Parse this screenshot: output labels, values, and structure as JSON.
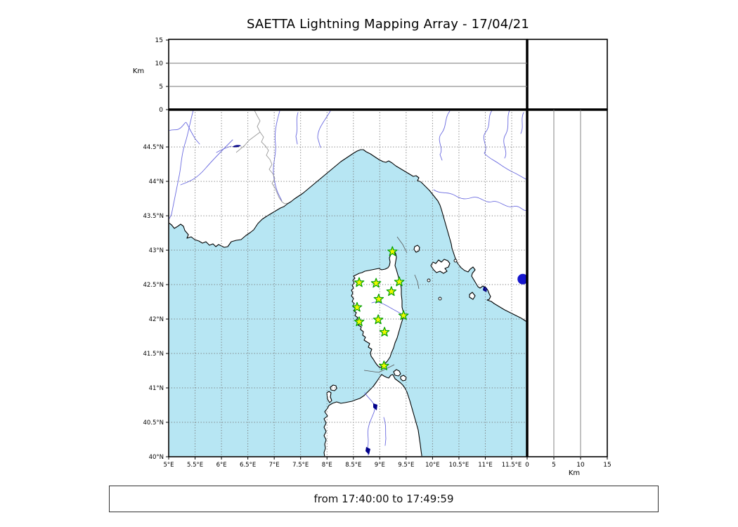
{
  "title": "SAETTA Lightning Mapping Array - 17/04/21",
  "footer": {
    "time_range": "from 17:40:00 to 17:49:59"
  },
  "top_panel": {
    "axis_label": "Km",
    "range": [
      0,
      15
    ],
    "ticks": [
      {
        "v": 0,
        "label": "0"
      },
      {
        "v": 5,
        "label": "5"
      },
      {
        "v": 10,
        "label": "10"
      },
      {
        "v": 15,
        "label": "15"
      }
    ]
  },
  "right_panel": {
    "axis_label": "Km",
    "range": [
      0,
      15
    ],
    "ticks": [
      {
        "v": 0,
        "label": "0"
      },
      {
        "v": 5,
        "label": "5"
      },
      {
        "v": 10,
        "label": "10"
      },
      {
        "v": 15,
        "label": "15"
      }
    ]
  },
  "map": {
    "lon_range": [
      5,
      11.79
    ],
    "lat_range": [
      40,
      45.03
    ],
    "lon_ticks": [
      {
        "v": 5,
        "label": "5°E"
      },
      {
        "v": 5.5,
        "label": "5.5°E"
      },
      {
        "v": 6,
        "label": "6°E"
      },
      {
        "v": 6.5,
        "label": "6.5°E"
      },
      {
        "v": 7,
        "label": "7°E"
      },
      {
        "v": 7.5,
        "label": "7.5°E"
      },
      {
        "v": 8,
        "label": "8°E"
      },
      {
        "v": 8.5,
        "label": "8.5°E"
      },
      {
        "v": 9,
        "label": "9°E"
      },
      {
        "v": 9.5,
        "label": "9.5°E"
      },
      {
        "v": 10,
        "label": "10°E"
      },
      {
        "v": 10.5,
        "label": "10.5°E"
      },
      {
        "v": 11,
        "label": "11°E"
      },
      {
        "v": 11.5,
        "label": "11.5°E"
      }
    ],
    "lat_ticks": [
      {
        "v": 40,
        "label": "40°N"
      },
      {
        "v": 40.5,
        "label": "40.5°N"
      },
      {
        "v": 41,
        "label": "41°N"
      },
      {
        "v": 41.5,
        "label": "41.5°N"
      },
      {
        "v": 42,
        "label": "42°N"
      },
      {
        "v": 42.5,
        "label": "42.5°N"
      },
      {
        "v": 43,
        "label": "43°N"
      },
      {
        "v": 43.5,
        "label": "43.5°N"
      },
      {
        "v": 44,
        "label": "44°N"
      },
      {
        "v": 44.5,
        "label": "44.5°N"
      }
    ]
  },
  "colors": {
    "sea": "#b7e6f3",
    "land": "#ffffff",
    "coast": "#000000",
    "river": "#6a6ae0",
    "grid": "#777777",
    "country_border": "#999999",
    "station_fill": "#f0f800",
    "station_edge": "#00a000",
    "event_dot": "#1515cc",
    "lake": "#00008b"
  },
  "chart_data": {
    "type": "scatter",
    "title": "SAETTA Lightning Mapping Array - 17/04/21",
    "time_window": "from 17:40:00 to 17:49:59",
    "map_panel": {
      "xlim": [
        5,
        11.79
      ],
      "ylim": [
        40,
        45.03
      ],
      "grid": true,
      "xticks": [
        "5°E",
        "5.5°E",
        "6°E",
        "6.5°E",
        "7°E",
        "7.5°E",
        "8°E",
        "8.5°E",
        "9°E",
        "9.5°E",
        "10°E",
        "10.5°E",
        "11°E",
        "11.5°E"
      ],
      "yticks": [
        "40°N",
        "40.5°N",
        "41°N",
        "41.5°N",
        "42°N",
        "42.5°N",
        "43°N",
        "43.5°N",
        "44°N",
        "44.5°N"
      ]
    },
    "altitude_top_panel": {
      "ylabel": "Km",
      "ylim": [
        0,
        15
      ],
      "yticks": [
        0,
        5,
        10,
        15
      ],
      "points": []
    },
    "altitude_right_panel": {
      "xlabel": "Km",
      "xlim": [
        0,
        15
      ],
      "xticks": [
        0,
        5,
        10,
        15
      ],
      "points": []
    },
    "series": [
      {
        "name": "LMA stations",
        "marker": "star",
        "points_lon_lat": [
          [
            9.24,
            42.98
          ],
          [
            8.61,
            42.53
          ],
          [
            8.93,
            42.52
          ],
          [
            9.37,
            42.54
          ],
          [
            9.22,
            42.4
          ],
          [
            8.98,
            42.29
          ],
          [
            8.57,
            42.17
          ],
          [
            9.45,
            42.05
          ],
          [
            8.97,
            41.99
          ],
          [
            8.61,
            41.96
          ],
          [
            9.09,
            41.81
          ],
          [
            9.08,
            41.32
          ]
        ]
      },
      {
        "name": "edge marker",
        "marker": "circle",
        "points_lon_lat": [
          [
            11.71,
            42.58
          ]
        ]
      }
    ],
    "legend": false
  }
}
